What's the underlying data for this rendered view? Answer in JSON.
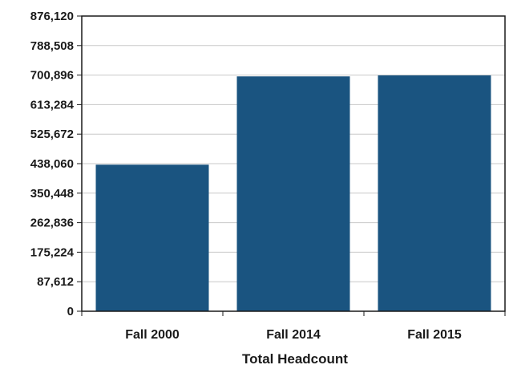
{
  "chart_data": {
    "type": "bar",
    "categories": [
      "Fall 2000",
      "Fall 2014",
      "Fall 2015"
    ],
    "values": [
      435000,
      697000,
      700000
    ],
    "title": "",
    "xlabel": "Total Headcount",
    "ylabel": "",
    "ylim": [
      0,
      876120
    ],
    "yticks": [
      0,
      87612,
      175224,
      262836,
      350448,
      438060,
      525672,
      613284,
      700896,
      788508,
      876120
    ],
    "ytick_labels": [
      "0",
      "87,612",
      "175,224",
      "262,836",
      "350,448",
      "438,060",
      "525,672",
      "613,284",
      "700,896",
      "788,508",
      "876,120"
    ],
    "grid": true,
    "legend": "none",
    "colors": {
      "bar": "#1a5480",
      "grid": "#c8c8c8",
      "axis": "#1a1a1a"
    }
  }
}
